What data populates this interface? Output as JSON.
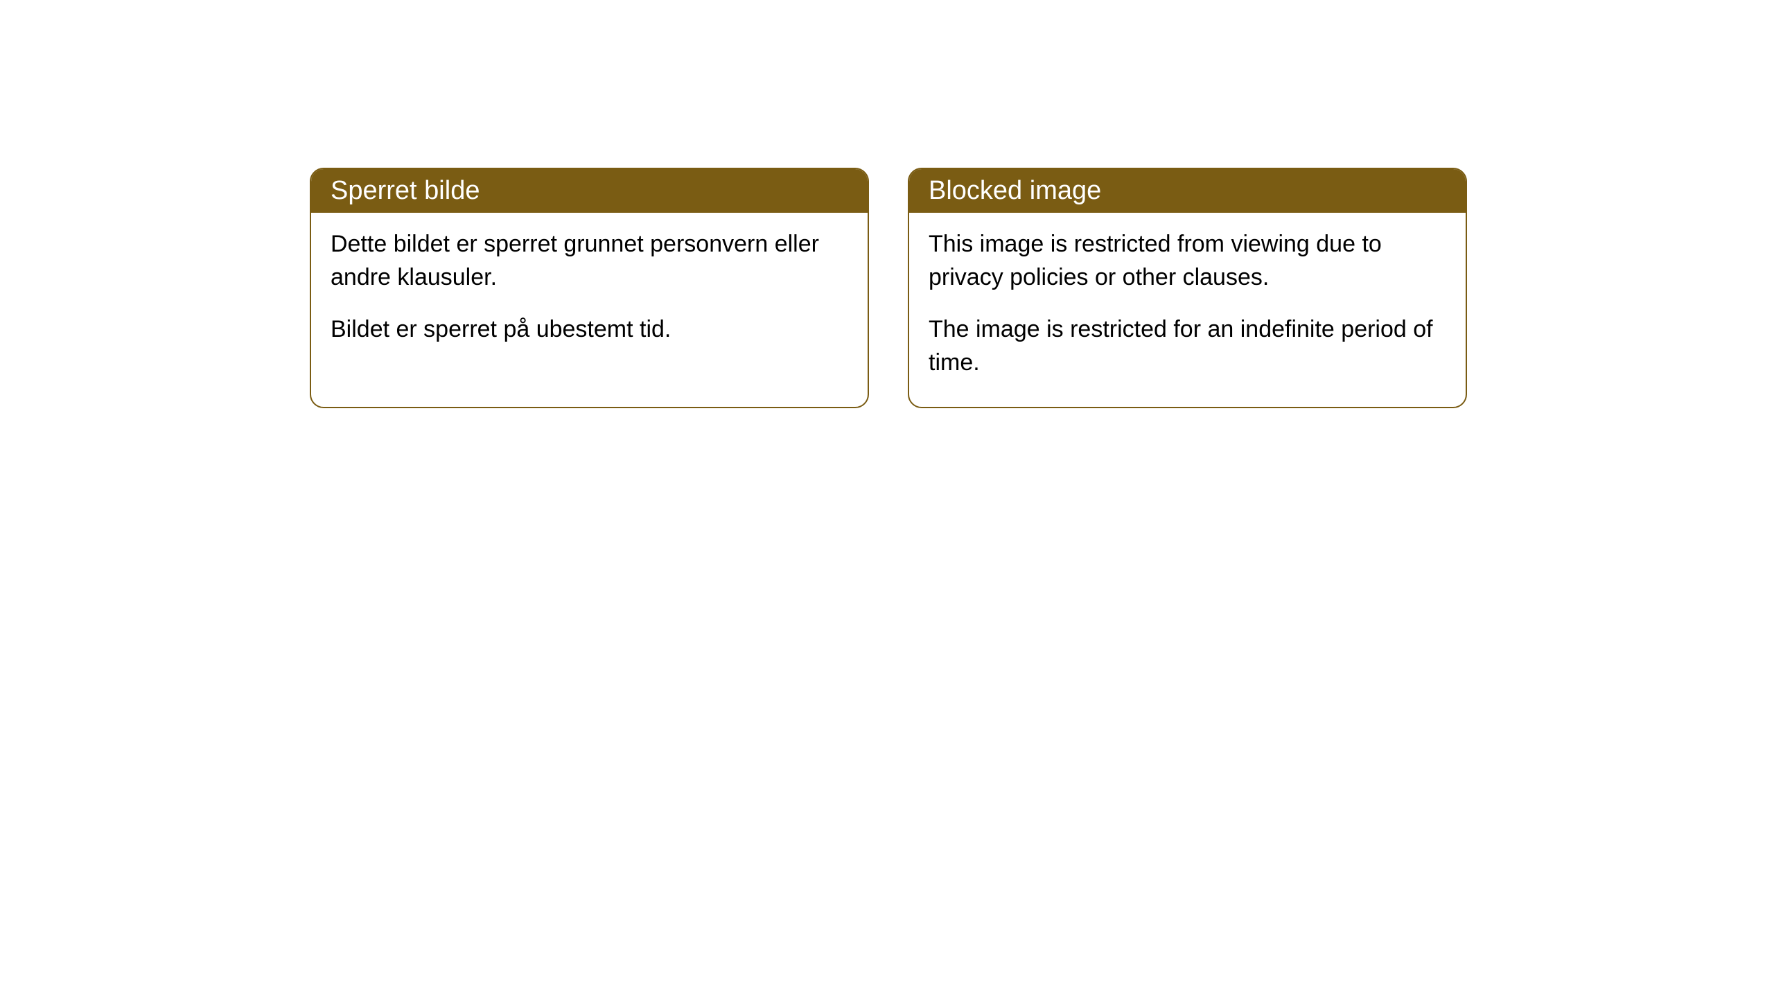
{
  "cards": [
    {
      "title": "Sperret bilde",
      "paragraph1": "Dette bildet er sperret grunnet personvern eller andre klausuler.",
      "paragraph2": "Bildet er sperret på ubestemt tid."
    },
    {
      "title": "Blocked image",
      "paragraph1": "This image is restricted from viewing due to privacy policies or other clauses.",
      "paragraph2": "The image is restricted for an indefinite period of time."
    }
  ],
  "style": {
    "header_background": "#7a5c13",
    "header_text_color": "#ffffff",
    "border_color": "#7a5c13",
    "border_radius": "20px",
    "body_background": "#ffffff",
    "body_text_color": "#000000",
    "title_fontsize": 38,
    "body_fontsize": 34
  }
}
